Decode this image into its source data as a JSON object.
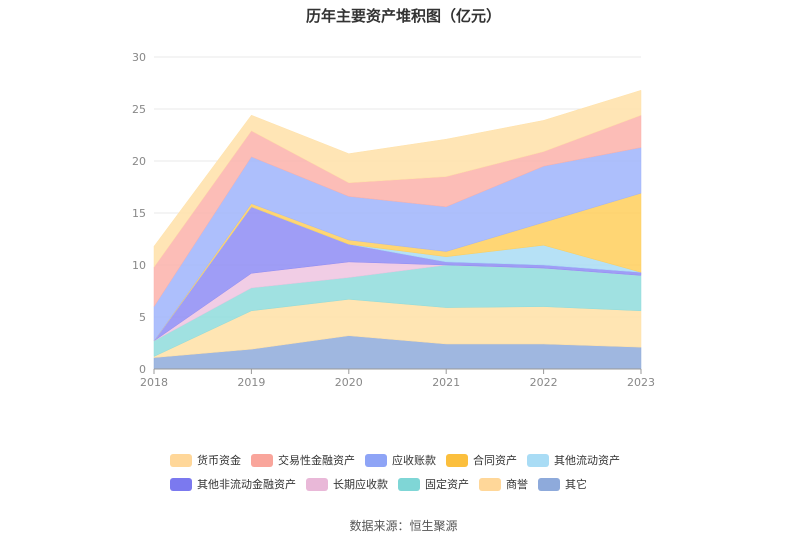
{
  "title": "历年主要资产堆积图（亿元）",
  "source": "数据来源：恒生聚源",
  "chart_data": {
    "type": "area",
    "stacked": true,
    "x": [
      "2018",
      "2019",
      "2020",
      "2021",
      "2022",
      "2023"
    ],
    "ylim": [
      0,
      30
    ],
    "yticks": [
      0,
      5,
      10,
      15,
      20,
      25,
      30
    ],
    "grid": true,
    "legend_position": "bottom",
    "series": [
      {
        "name": "其它",
        "color": "#8eaadb",
        "values": [
          1.1,
          1.9,
          3.2,
          2.4,
          2.4,
          2.1
        ]
      },
      {
        "name": "商誉",
        "color": "#ffe0a6",
        "values": [
          0.1,
          3.7,
          3.5,
          3.5,
          3.6,
          3.5
        ]
      },
      {
        "name": "固定资产",
        "color": "#8fdcdc",
        "values": [
          1.5,
          2.2,
          2.1,
          4.1,
          3.7,
          3.4
        ]
      },
      {
        "name": "长期应收款",
        "color": "#eec4e0",
        "values": [
          0.0,
          1.4,
          1.5,
          0.0,
          0.0,
          0.0
        ]
      },
      {
        "name": "其他非流动金融资产",
        "color": "#8e8cf5",
        "values": [
          0.0,
          6.4,
          1.7,
          0.3,
          0.3,
          0.3
        ]
      },
      {
        "name": "其他流动资产",
        "color": "#a9dcf5",
        "values": [
          0.0,
          0.0,
          0.0,
          0.5,
          1.9,
          0.0
        ]
      },
      {
        "name": "合同资产",
        "color": "#ffcf5c",
        "values": [
          0.0,
          0.3,
          0.4,
          0.5,
          2.2,
          7.6
        ]
      },
      {
        "name": "应收账款",
        "color": "#9fb4fb",
        "values": [
          3.3,
          4.5,
          4.2,
          4.3,
          5.4,
          4.4
        ]
      },
      {
        "name": "交易性金融资产",
        "color": "#fbb2aa",
        "values": [
          3.8,
          2.5,
          1.3,
          2.9,
          1.4,
          3.1
        ]
      },
      {
        "name": "货币资金",
        "color": "#ffe1a8",
        "values": [
          2.0,
          1.5,
          2.8,
          3.6,
          3.0,
          2.4
        ]
      }
    ]
  },
  "legend_rows": [
    [
      {
        "label": "货币资金",
        "color": "#ffd799"
      },
      {
        "label": "交易性金融资产",
        "color": "#f9a59b"
      },
      {
        "label": "应收账款",
        "color": "#8ea4f6"
      },
      {
        "label": "合同资产",
        "color": "#fbbf3d"
      },
      {
        "label": "其他流动资产",
        "color": "#a9dcf5"
      }
    ],
    [
      {
        "label": "其他非流动金融资产",
        "color": "#7b79ef"
      },
      {
        "label": "长期应收款",
        "color": "#e9b8d8"
      },
      {
        "label": "固定资产",
        "color": "#7fd6d6"
      },
      {
        "label": "商誉",
        "color": "#ffd799"
      },
      {
        "label": "其它",
        "color": "#8eaadb"
      }
    ]
  ]
}
